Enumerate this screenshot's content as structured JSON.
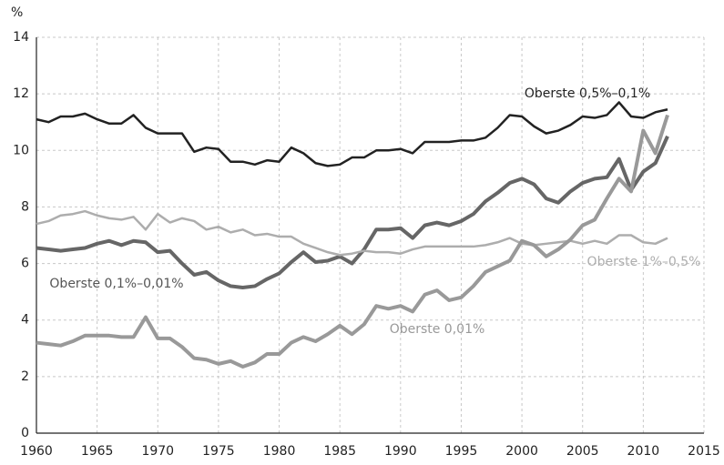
{
  "chart_data": {
    "type": "line",
    "y_axis_label": "%",
    "x": [
      1960,
      1961,
      1962,
      1963,
      1964,
      1965,
      1966,
      1967,
      1968,
      1969,
      1970,
      1971,
      1972,
      1973,
      1974,
      1975,
      1976,
      1977,
      1978,
      1979,
      1980,
      1981,
      1982,
      1983,
      1984,
      1985,
      1986,
      1987,
      1988,
      1989,
      1990,
      1991,
      1992,
      1993,
      1994,
      1995,
      1996,
      1997,
      1998,
      1999,
      2000,
      2001,
      2002,
      2003,
      2004,
      2005,
      2006,
      2007,
      2008,
      2009,
      2010,
      2011,
      2012
    ],
    "series": [
      {
        "name": "Oberste 0,5%–0,1%",
        "color": "#222222",
        "values": [
          11.1,
          11.0,
          11.2,
          11.2,
          11.3,
          11.1,
          10.95,
          10.95,
          11.25,
          10.8,
          10.6,
          10.6,
          10.6,
          9.95,
          10.1,
          10.05,
          9.6,
          9.6,
          9.5,
          9.65,
          9.6,
          10.1,
          9.9,
          9.55,
          9.45,
          9.5,
          9.75,
          9.75,
          10.0,
          10.0,
          10.05,
          9.9,
          10.3,
          10.3,
          10.3,
          10.35,
          10.35,
          10.45,
          10.8,
          11.25,
          11.2,
          10.85,
          10.6,
          10.7,
          10.9,
          11.2,
          11.15,
          11.25,
          11.7,
          11.2,
          11.15,
          11.35,
          11.45
        ]
      },
      {
        "name": "Oberste 0,1%–0,01%",
        "color": "#666666",
        "values": [
          6.55,
          6.5,
          6.45,
          6.5,
          6.55,
          6.7,
          6.8,
          6.65,
          6.8,
          6.75,
          6.4,
          6.45,
          6.0,
          5.6,
          5.7,
          5.4,
          5.2,
          5.15,
          5.2,
          5.45,
          5.65,
          6.05,
          6.4,
          6.05,
          6.1,
          6.25,
          6.0,
          6.5,
          7.2,
          7.2,
          7.25,
          6.9,
          7.35,
          7.45,
          7.35,
          7.5,
          7.75,
          8.2,
          8.5,
          8.85,
          9.0,
          8.8,
          8.3,
          8.15,
          8.55,
          8.85,
          9.0,
          9.05,
          9.7,
          8.6,
          9.25,
          9.55,
          10.5
        ]
      },
      {
        "name": "Oberste 1%–0,5%",
        "color": "#adadad",
        "values": [
          7.4,
          7.5,
          7.7,
          7.75,
          7.85,
          7.7,
          7.6,
          7.55,
          7.65,
          7.2,
          7.75,
          7.45,
          7.6,
          7.5,
          7.2,
          7.3,
          7.1,
          7.2,
          7.0,
          7.05,
          6.95,
          6.95,
          6.7,
          6.55,
          6.4,
          6.3,
          6.35,
          6.45,
          6.4,
          6.4,
          6.35,
          6.5,
          6.6,
          6.6,
          6.6,
          6.6,
          6.6,
          6.65,
          6.75,
          6.9,
          6.7,
          6.65,
          6.7,
          6.75,
          6.8,
          6.7,
          6.8,
          6.7,
          7.0,
          7.0,
          6.75,
          6.7,
          6.9
        ]
      },
      {
        "name": "Oberste 0,01%",
        "color": "#999999",
        "values": [
          3.2,
          3.15,
          3.1,
          3.25,
          3.45,
          3.45,
          3.45,
          3.4,
          3.4,
          4.1,
          3.35,
          3.35,
          3.05,
          2.65,
          2.6,
          2.45,
          2.55,
          2.35,
          2.5,
          2.8,
          2.8,
          3.2,
          3.4,
          3.25,
          3.5,
          3.8,
          3.5,
          3.85,
          4.5,
          4.4,
          4.5,
          4.3,
          4.9,
          5.05,
          4.7,
          4.8,
          5.2,
          5.7,
          5.9,
          6.1,
          6.8,
          6.65,
          6.25,
          6.5,
          6.85,
          7.35,
          7.55,
          8.3,
          9.0,
          8.55,
          10.7,
          9.9,
          11.25
        ]
      }
    ],
    "xlim": [
      1960,
      2015
    ],
    "xticks": [
      1960,
      1965,
      1970,
      1975,
      1980,
      1985,
      1990,
      1995,
      2000,
      2005,
      2010,
      2015
    ],
    "ylim": [
      0,
      14
    ],
    "yticks": [
      0,
      2,
      4,
      6,
      8,
      10,
      12,
      14
    ],
    "grid": true
  }
}
